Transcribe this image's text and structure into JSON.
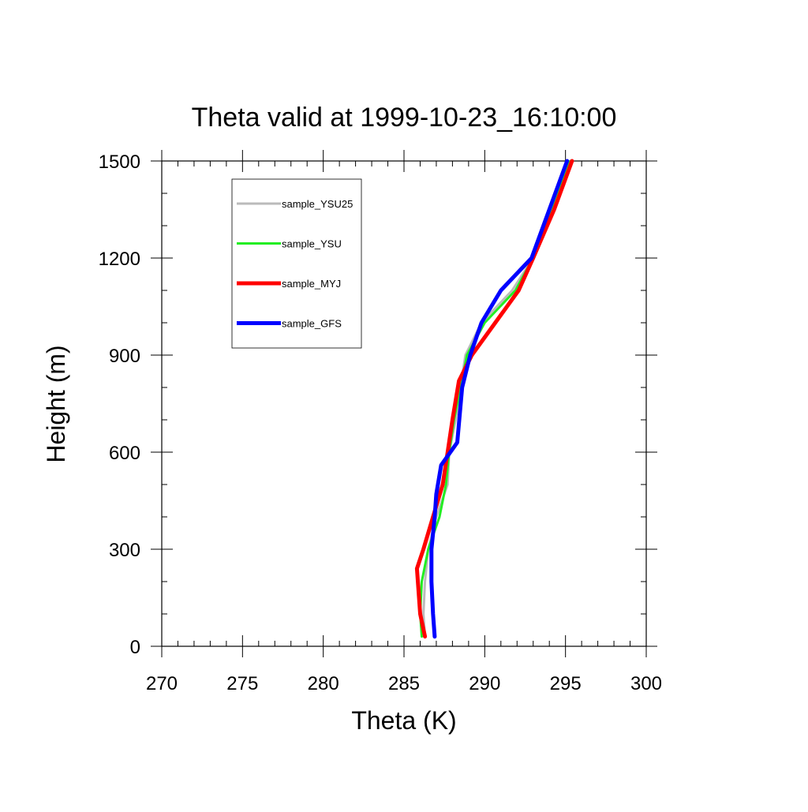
{
  "chart_data": {
    "type": "line",
    "title": "Theta valid at 1999-10-23_16:10:00",
    "xlabel": "Theta (K)",
    "ylabel": "Height (m)",
    "xlim": [
      270,
      300
    ],
    "ylim": [
      0,
      1500
    ],
    "xticks": [
      270,
      275,
      280,
      285,
      290,
      295,
      300
    ],
    "yticks": [
      0,
      300,
      600,
      900,
      1200,
      1500
    ],
    "grid": false,
    "legend_position": "top-left",
    "series": [
      {
        "name": "sample_YSU25",
        "color": "#bbbbbb",
        "x": [
          286.3,
          286.2,
          286.3,
          286.5,
          287.0,
          287.7,
          287.8,
          288.2,
          288.8,
          289.8,
          291.7,
          293.0,
          294.2,
          295.3
        ],
        "y": [
          30,
          100,
          200,
          300,
          400,
          500,
          600,
          700,
          900,
          1000,
          1100,
          1200,
          1350,
          1500
        ]
      },
      {
        "name": "sample_YSU",
        "color": "#22ee22",
        "x": [
          286.1,
          286.0,
          286.1,
          286.5,
          287.2,
          287.6,
          287.8,
          288.1,
          288.9,
          290.0,
          291.9,
          293.0,
          294.2,
          295.3
        ],
        "y": [
          30,
          100,
          200,
          300,
          400,
          500,
          600,
          700,
          900,
          1000,
          1100,
          1200,
          1350,
          1500
        ]
      },
      {
        "name": "sample_MYJ",
        "color": "#ff0000",
        "x": [
          286.3,
          286.0,
          285.8,
          286.2,
          286.8,
          287.4,
          287.7,
          288.0,
          288.4,
          289.2,
          292.1,
          293.0,
          294.3,
          295.4
        ],
        "y": [
          30,
          100,
          240,
          300,
          400,
          500,
          600,
          700,
          820,
          900,
          1100,
          1200,
          1350,
          1500
        ]
      },
      {
        "name": "sample_GFS",
        "color": "#0000ff",
        "x": [
          286.9,
          286.8,
          286.7,
          286.7,
          286.9,
          287.0,
          287.3,
          288.3,
          288.6,
          289.1,
          289.8,
          291.0,
          292.9,
          295.1
        ],
        "y": [
          30,
          100,
          200,
          300,
          400,
          470,
          560,
          630,
          800,
          900,
          1000,
          1100,
          1200,
          1500
        ]
      }
    ]
  }
}
